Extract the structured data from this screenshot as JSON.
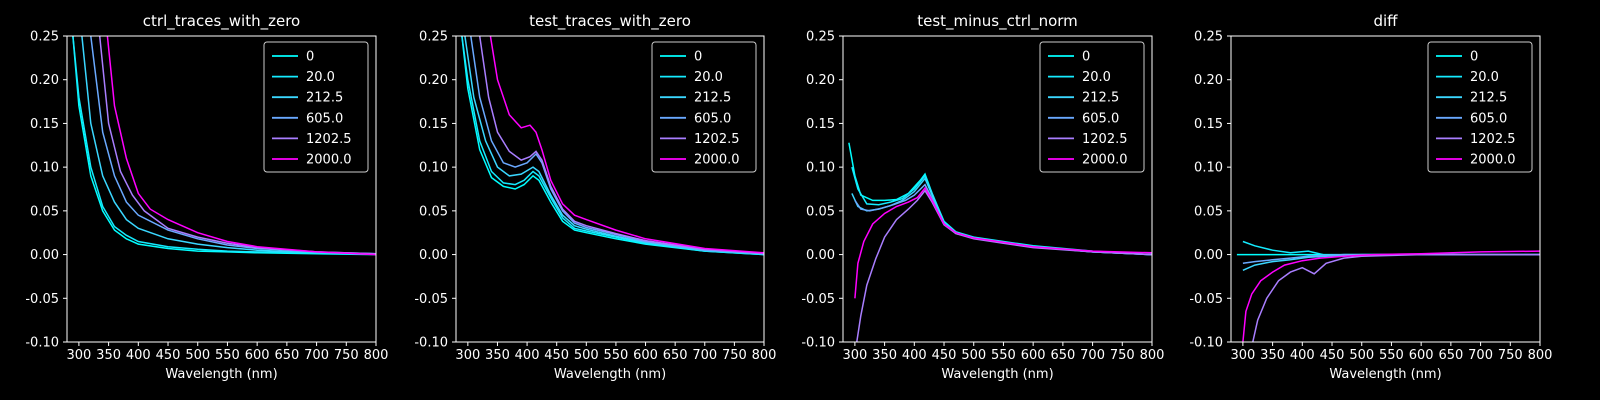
{
  "figure": {
    "background": "#000000",
    "foreground": "#ffffff"
  },
  "legend_entries": [
    {
      "label": "0",
      "color": "#00ffff"
    },
    {
      "label": "20.0",
      "color": "#14ebff"
    },
    {
      "label": "212.5",
      "color": "#3ad7ff"
    },
    {
      "label": "605.0",
      "color": "#6aa9ff"
    },
    {
      "label": "1202.5",
      "color": "#a97eff"
    },
    {
      "label": "2000.0",
      "color": "#ff00ff"
    }
  ],
  "chart_data": [
    {
      "type": "line",
      "title": "ctrl_traces_with_zero",
      "xlabel": "Wavelength (nm)",
      "ylabel": "",
      "xlim": [
        280,
        800
      ],
      "ylim": [
        -0.1,
        0.25
      ],
      "xticks": [
        300,
        350,
        400,
        450,
        500,
        550,
        600,
        650,
        700,
        750,
        800
      ],
      "yticks": [
        -0.1,
        -0.05,
        0.0,
        0.05,
        0.1,
        0.15,
        0.2,
        0.25
      ],
      "legend": "top-right",
      "series": [
        {
          "name": "0",
          "x": [
            290,
            300,
            320,
            340,
            360,
            380,
            400,
            450,
            500,
            550,
            600,
            700,
            800
          ],
          "y": [
            0.25,
            0.17,
            0.09,
            0.05,
            0.028,
            0.018,
            0.012,
            0.007,
            0.004,
            0.003,
            0.002,
            0.001,
            0.0
          ]
        },
        {
          "name": "20.0",
          "x": [
            290,
            300,
            320,
            340,
            360,
            380,
            400,
            450,
            500,
            550,
            600,
            700,
            800
          ],
          "y": [
            0.25,
            0.18,
            0.1,
            0.055,
            0.032,
            0.022,
            0.015,
            0.009,
            0.006,
            0.004,
            0.003,
            0.002,
            0.001
          ]
        },
        {
          "name": "212.5",
          "x": [
            305,
            320,
            340,
            360,
            380,
            400,
            450,
            500,
            550,
            600,
            700,
            800
          ],
          "y": [
            0.25,
            0.15,
            0.09,
            0.06,
            0.04,
            0.03,
            0.018,
            0.012,
            0.008,
            0.005,
            0.002,
            0.001
          ]
        },
        {
          "name": "605.0",
          "x": [
            320,
            340,
            360,
            380,
            400,
            450,
            500,
            550,
            600,
            700,
            800
          ],
          "y": [
            0.25,
            0.14,
            0.09,
            0.06,
            0.045,
            0.028,
            0.018,
            0.011,
            0.007,
            0.003,
            0.001
          ]
        },
        {
          "name": "1202.5",
          "x": [
            335,
            350,
            370,
            390,
            410,
            450,
            500,
            550,
            600,
            700,
            800
          ],
          "y": [
            0.25,
            0.15,
            0.095,
            0.068,
            0.05,
            0.03,
            0.02,
            0.013,
            0.008,
            0.003,
            0.001
          ]
        },
        {
          "name": "2000.0",
          "x": [
            348,
            360,
            380,
            400,
            420,
            450,
            500,
            550,
            600,
            700,
            800
          ],
          "y": [
            0.25,
            0.17,
            0.11,
            0.07,
            0.052,
            0.04,
            0.025,
            0.015,
            0.009,
            0.003,
            0.0
          ]
        }
      ]
    },
    {
      "type": "line",
      "title": "test_traces_with_zero",
      "xlabel": "Wavelength (nm)",
      "ylabel": "",
      "xlim": [
        280,
        800
      ],
      "ylim": [
        -0.1,
        0.25
      ],
      "xticks": [
        300,
        350,
        400,
        450,
        500,
        550,
        600,
        650,
        700,
        750,
        800
      ],
      "yticks": [
        -0.1,
        -0.05,
        0.0,
        0.05,
        0.1,
        0.15,
        0.2,
        0.25
      ],
      "legend": "top-right",
      "series": [
        {
          "name": "0",
          "x": [
            290,
            300,
            320,
            340,
            360,
            380,
            395,
            410,
            420,
            440,
            460,
            480,
            500,
            550,
            600,
            700,
            800
          ],
          "y": [
            0.25,
            0.19,
            0.12,
            0.088,
            0.078,
            0.075,
            0.08,
            0.09,
            0.085,
            0.06,
            0.038,
            0.028,
            0.025,
            0.018,
            0.012,
            0.004,
            0.0
          ]
        },
        {
          "name": "20.0",
          "x": [
            290,
            300,
            320,
            340,
            360,
            380,
            395,
            410,
            420,
            440,
            460,
            480,
            500,
            550,
            600,
            700,
            800
          ],
          "y": [
            0.25,
            0.2,
            0.13,
            0.095,
            0.082,
            0.08,
            0.085,
            0.095,
            0.09,
            0.065,
            0.042,
            0.03,
            0.027,
            0.02,
            0.013,
            0.004,
            0.0
          ]
        },
        {
          "name": "212.5",
          "x": [
            295,
            310,
            330,
            350,
            370,
            390,
            410,
            420,
            440,
            460,
            480,
            500,
            550,
            600,
            700,
            800
          ],
          "y": [
            0.25,
            0.18,
            0.13,
            0.1,
            0.09,
            0.092,
            0.1,
            0.095,
            0.068,
            0.045,
            0.033,
            0.029,
            0.021,
            0.014,
            0.005,
            0.001
          ]
        },
        {
          "name": "605.0",
          "x": [
            305,
            320,
            340,
            360,
            380,
            400,
            415,
            425,
            440,
            460,
            480,
            500,
            550,
            600,
            700,
            800
          ],
          "y": [
            0.25,
            0.18,
            0.13,
            0.105,
            0.1,
            0.105,
            0.115,
            0.105,
            0.075,
            0.05,
            0.036,
            0.031,
            0.023,
            0.015,
            0.005,
            0.001
          ]
        },
        {
          "name": "1202.5",
          "x": [
            320,
            335,
            350,
            370,
            390,
            405,
            415,
            425,
            440,
            460,
            480,
            500,
            550,
            600,
            700,
            800
          ],
          "y": [
            0.25,
            0.18,
            0.14,
            0.118,
            0.108,
            0.112,
            0.118,
            0.108,
            0.078,
            0.052,
            0.038,
            0.033,
            0.024,
            0.016,
            0.006,
            0.001
          ]
        },
        {
          "name": "2000.0",
          "x": [
            338,
            350,
            370,
            390,
            405,
            415,
            425,
            440,
            460,
            480,
            500,
            550,
            600,
            700,
            800
          ],
          "y": [
            0.25,
            0.2,
            0.16,
            0.145,
            0.148,
            0.14,
            0.12,
            0.085,
            0.058,
            0.045,
            0.04,
            0.028,
            0.018,
            0.007,
            0.002
          ]
        }
      ]
    },
    {
      "type": "line",
      "title": "test_minus_ctrl_norm",
      "xlabel": "Wavelength (nm)",
      "ylabel": "",
      "xlim": [
        280,
        800
      ],
      "ylim": [
        -0.1,
        0.25
      ],
      "xticks": [
        300,
        350,
        400,
        450,
        500,
        550,
        600,
        650,
        700,
        750,
        800
      ],
      "yticks": [
        -0.1,
        -0.05,
        0.0,
        0.05,
        0.1,
        0.15,
        0.2,
        0.25
      ],
      "legend": "top-right",
      "series": [
        {
          "name": "0",
          "x": [
            290,
            300,
            310,
            330,
            350,
            370,
            390,
            410,
            418,
            430,
            450,
            470,
            500,
            550,
            600,
            700,
            800
          ],
          "y": [
            0.128,
            0.09,
            0.068,
            0.062,
            0.062,
            0.063,
            0.07,
            0.085,
            0.092,
            0.07,
            0.038,
            0.026,
            0.02,
            0.015,
            0.01,
            0.004,
            0.0
          ]
        },
        {
          "name": "20.0",
          "x": [
            295,
            305,
            320,
            340,
            360,
            380,
            400,
            418,
            430,
            450,
            470,
            500,
            550,
            600,
            700,
            800
          ],
          "y": [
            0.1,
            0.075,
            0.058,
            0.057,
            0.06,
            0.064,
            0.075,
            0.09,
            0.07,
            0.037,
            0.025,
            0.019,
            0.014,
            0.009,
            0.003,
            0.0
          ]
        },
        {
          "name": "212.5",
          "x": [
            295,
            305,
            320,
            340,
            360,
            380,
            400,
            418,
            430,
            450,
            470,
            500,
            550,
            600,
            700,
            800
          ],
          "y": [
            0.07,
            0.055,
            0.05,
            0.052,
            0.056,
            0.062,
            0.072,
            0.087,
            0.068,
            0.036,
            0.025,
            0.019,
            0.014,
            0.009,
            0.003,
            0.0
          ]
        },
        {
          "name": "605.0",
          "x": [
            300,
            310,
            325,
            345,
            365,
            385,
            400,
            418,
            430,
            450,
            470,
            500,
            550,
            600,
            700,
            800
          ],
          "y": [
            0.062,
            0.052,
            0.05,
            0.053,
            0.057,
            0.062,
            0.068,
            0.08,
            0.064,
            0.035,
            0.024,
            0.019,
            0.014,
            0.009,
            0.003,
            0.0
          ]
        },
        {
          "name": "1202.5",
          "x": [
            302,
            310,
            320,
            335,
            350,
            370,
            390,
            405,
            418,
            430,
            450,
            470,
            500,
            550,
            600,
            700,
            800
          ],
          "y": [
            -0.105,
            -0.07,
            -0.035,
            -0.005,
            0.02,
            0.04,
            0.052,
            0.062,
            0.073,
            0.06,
            0.034,
            0.024,
            0.018,
            0.013,
            0.008,
            0.003,
            0.0
          ]
        },
        {
          "name": "2000.0",
          "x": [
            300,
            305,
            315,
            330,
            350,
            370,
            390,
            405,
            418,
            430,
            450,
            470,
            500,
            550,
            600,
            700,
            800
          ],
          "y": [
            -0.05,
            -0.01,
            0.015,
            0.035,
            0.047,
            0.055,
            0.06,
            0.065,
            0.076,
            0.062,
            0.035,
            0.025,
            0.019,
            0.014,
            0.009,
            0.004,
            0.002
          ]
        }
      ]
    },
    {
      "type": "line",
      "title": "diff",
      "xlabel": "Wavelength (nm)",
      "ylabel": "",
      "xlim": [
        280,
        800
      ],
      "ylim": [
        -0.1,
        0.25
      ],
      "xticks": [
        300,
        350,
        400,
        450,
        500,
        550,
        600,
        650,
        700,
        750,
        800
      ],
      "yticks": [
        -0.1,
        -0.05,
        0.0,
        0.05,
        0.1,
        0.15,
        0.2,
        0.25
      ],
      "legend": "top-right",
      "series": [
        {
          "name": "0",
          "x": [
            290,
            300,
            350,
            400,
            450,
            500,
            550,
            600,
            700,
            800
          ],
          "y": [
            0.0,
            0.0,
            0.0,
            0.0,
            0.0,
            0.0,
            0.0,
            0.0,
            0.0,
            0.0
          ]
        },
        {
          "name": "20.0",
          "x": [
            300,
            320,
            350,
            380,
            410,
            440,
            470,
            500,
            600,
            700,
            800
          ],
          "y": [
            0.015,
            0.01,
            0.005,
            0.002,
            0.004,
            -0.001,
            0.0,
            0.0,
            0.0,
            0.0,
            0.0
          ]
        },
        {
          "name": "212.5",
          "x": [
            300,
            320,
            350,
            380,
            410,
            440,
            470,
            500,
            600,
            700,
            800
          ],
          "y": [
            -0.018,
            -0.012,
            -0.008,
            -0.006,
            -0.003,
            -0.002,
            -0.001,
            0.0,
            0.0,
            0.0,
            0.0
          ]
        },
        {
          "name": "605.0",
          "x": [
            300,
            320,
            350,
            380,
            410,
            440,
            470,
            500,
            600,
            700,
            800
          ],
          "y": [
            -0.01,
            -0.008,
            -0.006,
            -0.004,
            -0.002,
            -0.001,
            0.0,
            0.0,
            0.0,
            0.0,
            0.0
          ]
        },
        {
          "name": "1202.5",
          "x": [
            315,
            325,
            340,
            360,
            380,
            400,
            420,
            440,
            470,
            500,
            600,
            700,
            800
          ],
          "y": [
            -0.105,
            -0.075,
            -0.05,
            -0.03,
            -0.02,
            -0.015,
            -0.022,
            -0.01,
            -0.004,
            -0.002,
            0.0,
            0.0,
            0.0
          ]
        },
        {
          "name": "2000.0",
          "x": [
            300,
            305,
            315,
            330,
            350,
            370,
            400,
            430,
            470,
            520,
            600,
            700,
            800
          ],
          "y": [
            -0.1,
            -0.065,
            -0.045,
            -0.03,
            -0.02,
            -0.012,
            -0.007,
            -0.004,
            -0.002,
            0.0,
            0.001,
            0.003,
            0.004
          ]
        }
      ]
    }
  ]
}
